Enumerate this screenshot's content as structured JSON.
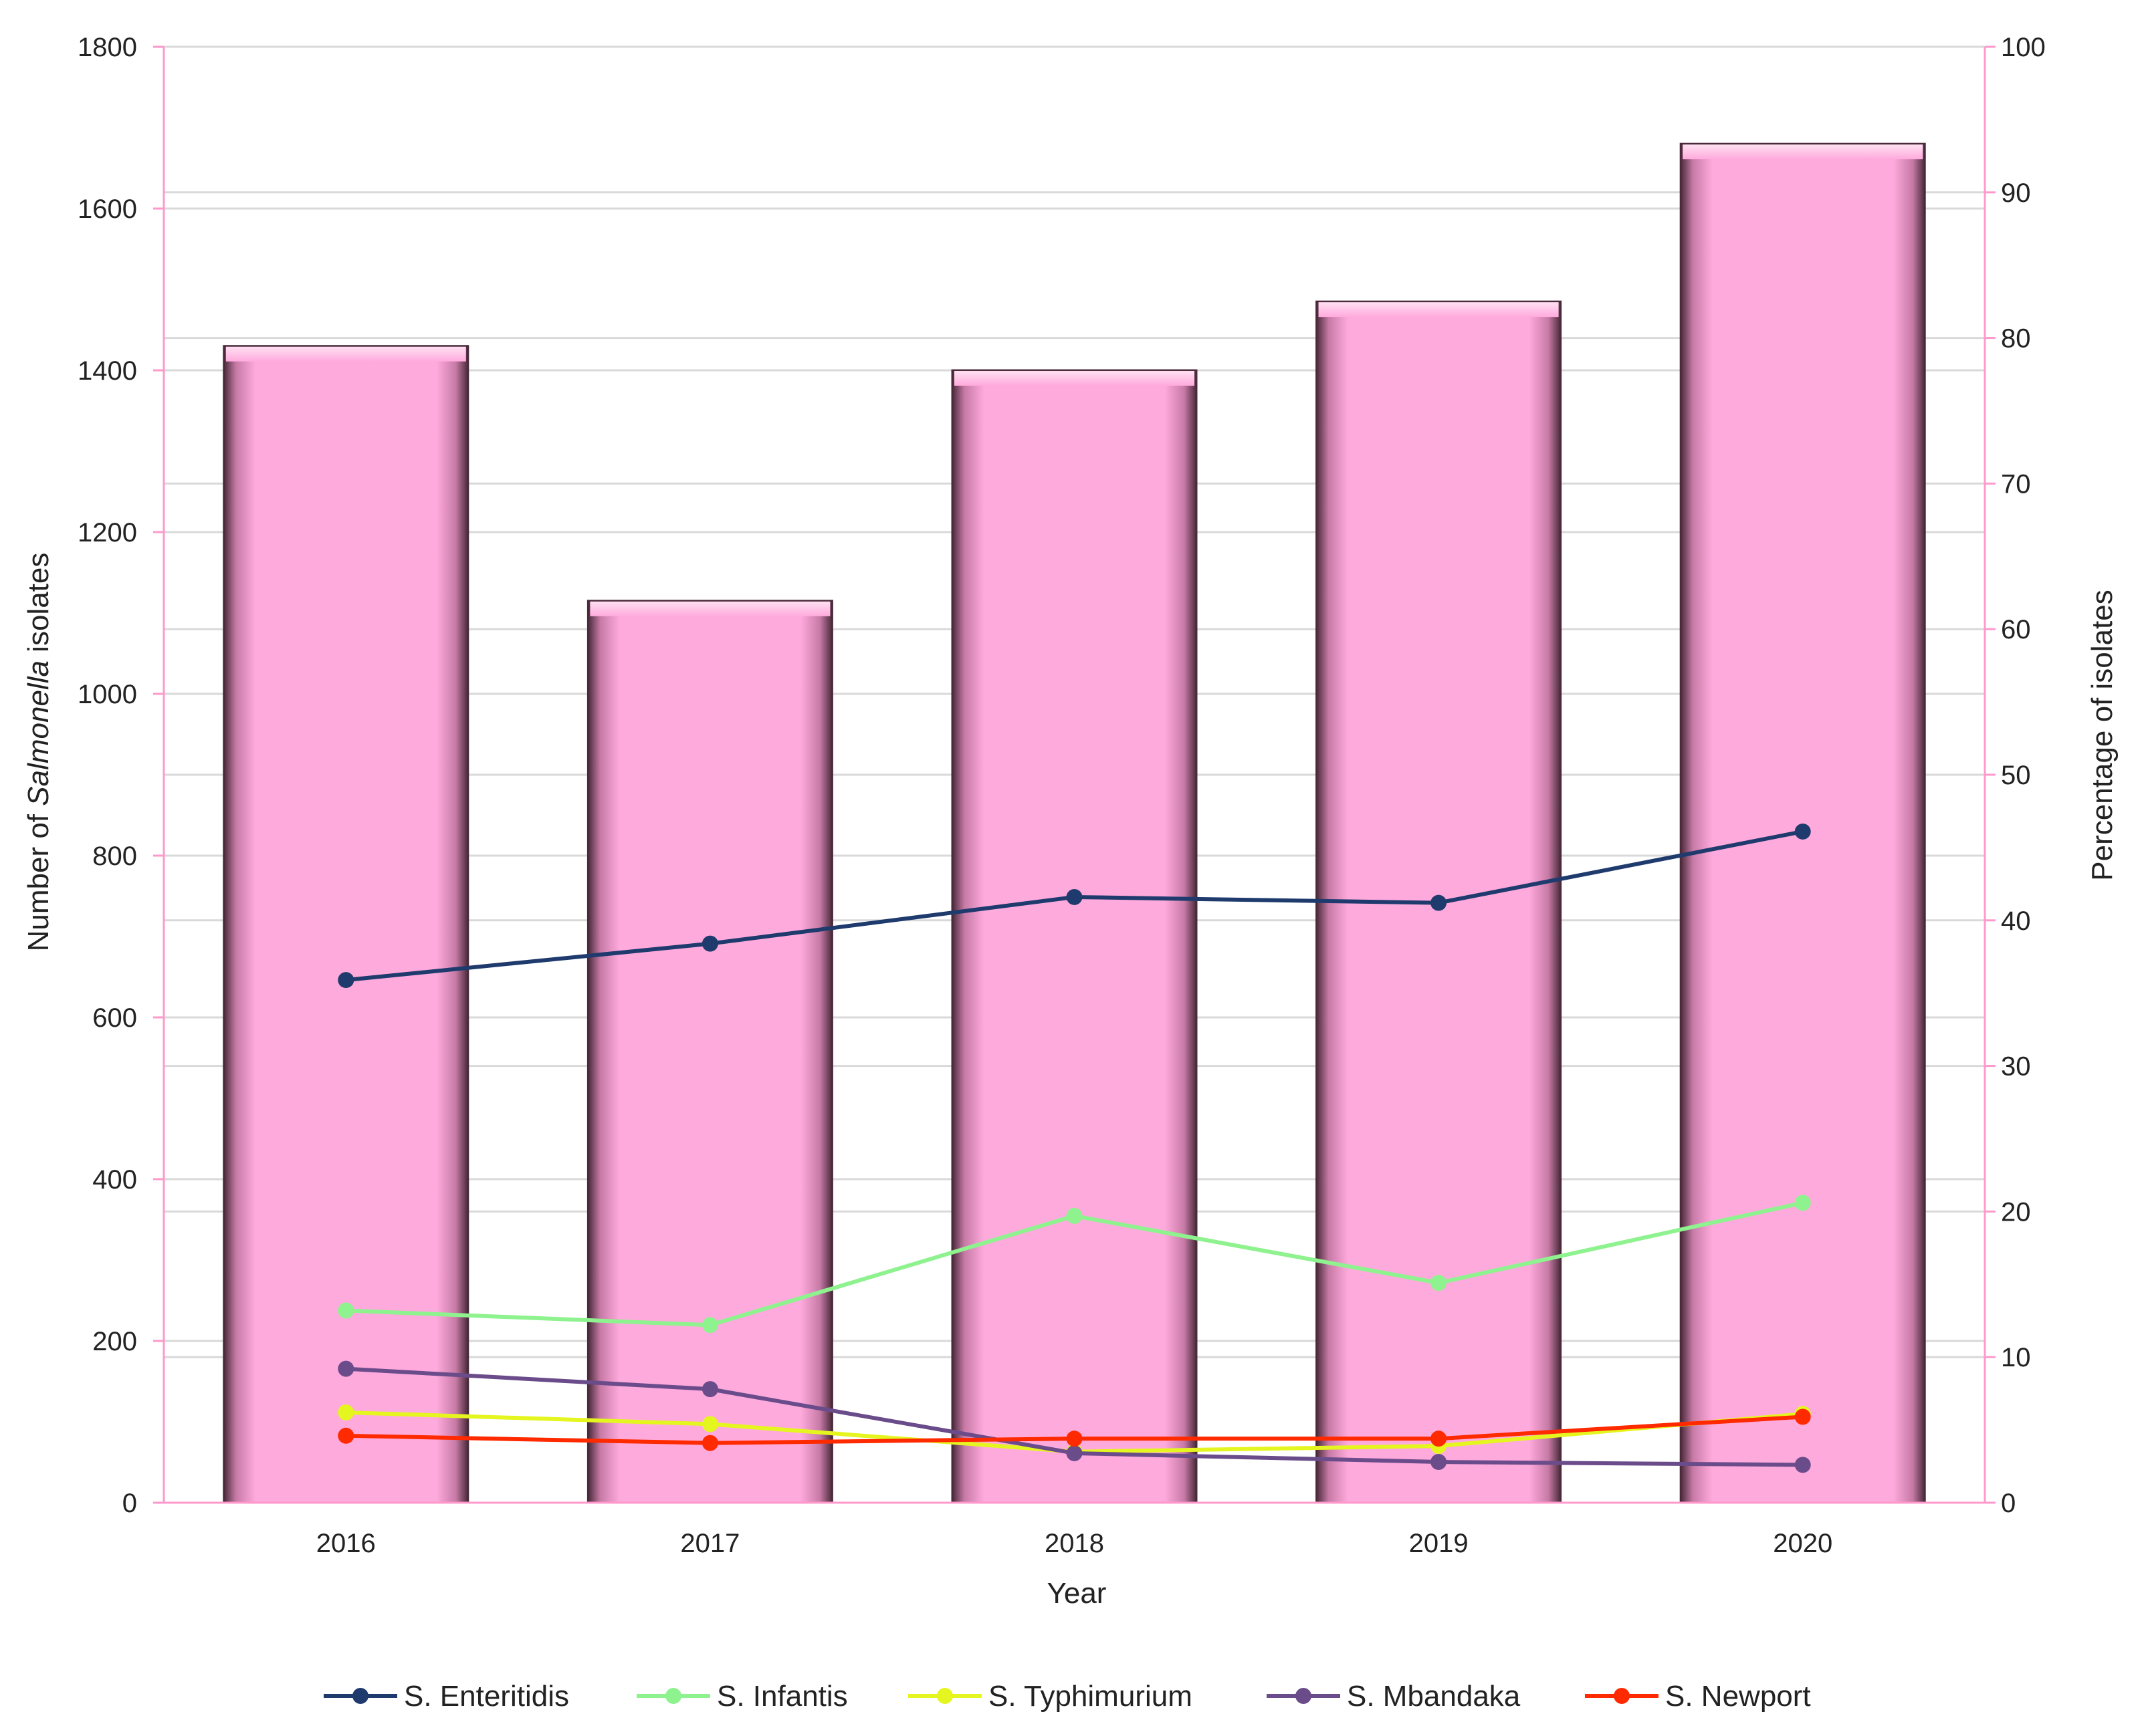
{
  "colors": {
    "bar_fill": "#ffaadd",
    "bar_edge": "#4a2a3a",
    "axis_line": "#ff99cc",
    "grid": "#d9d9d9"
  },
  "chart_data": {
    "type": "bar",
    "categories": [
      "2016",
      "2017",
      "2018",
      "2019",
      "2020"
    ],
    "xlabel": "Year",
    "ylabel_parts": {
      "before": "Number of ",
      "italic": "Salmonella",
      "after": " isolates"
    },
    "y2label": "Percentage of isolates",
    "ylim": [
      0,
      1800
    ],
    "y2lim": [
      0,
      100
    ],
    "yticks": [
      0,
      200,
      400,
      600,
      800,
      1000,
      1200,
      1400,
      1600,
      1800
    ],
    "y2ticks": [
      0,
      10,
      20,
      30,
      40,
      50,
      60,
      70,
      80,
      90,
      100
    ],
    "bars": {
      "axis": "left",
      "values": [
        1430,
        1115,
        1400,
        1485,
        1680
      ]
    },
    "series": [
      {
        "name": "S. Enteritidis",
        "axis": "right",
        "color": "#1f3b6e",
        "values": [
          35.9,
          38.4,
          41.6,
          41.2,
          46.1
        ]
      },
      {
        "name": "S. Infantis",
        "axis": "right",
        "color": "#8ef28e",
        "values": [
          13.2,
          12.2,
          19.7,
          15.1,
          20.6
        ]
      },
      {
        "name": "S. Typhimurium",
        "axis": "right",
        "color": "#e5f51f",
        "values": [
          6.2,
          5.4,
          3.5,
          3.9,
          6.1
        ]
      },
      {
        "name": "S. Mbandaka",
        "axis": "right",
        "color": "#6b4c8a",
        "values": [
          9.2,
          7.8,
          3.4,
          2.8,
          2.6
        ]
      },
      {
        "name": "S. Newport",
        "axis": "right",
        "color": "#ff2a00",
        "values": [
          4.6,
          4.1,
          4.4,
          4.4,
          5.9
        ]
      }
    ],
    "grid": true,
    "legend_position": "bottom"
  }
}
